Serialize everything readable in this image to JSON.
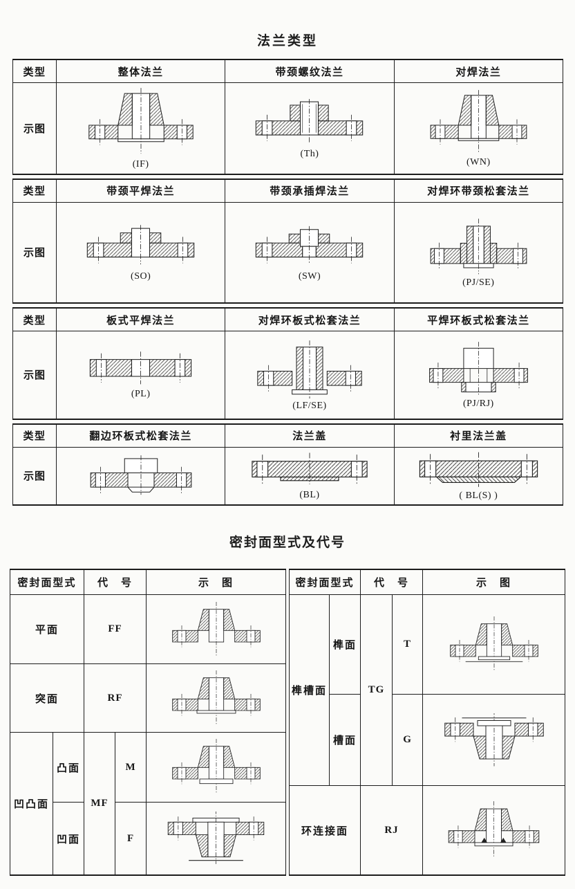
{
  "titles": {
    "flange_types": "法兰类型",
    "sealing_faces": "密封面型式及代号"
  },
  "colors": {
    "ink": "#1c1c1c",
    "paper": "#fbfbf9"
  },
  "flange_table": {
    "type_label": "类型",
    "diagram_label": "示图",
    "bands": [
      {
        "columns": [
          {
            "name": "整体法兰",
            "code": "(IF)",
            "diagram": "IF"
          },
          {
            "name": "带颈螺纹法兰",
            "code": "(Th)",
            "diagram": "TH"
          },
          {
            "name": "对焊法兰",
            "code": "(WN)",
            "diagram": "WN"
          }
        ]
      },
      {
        "columns": [
          {
            "name": "带颈平焊法兰",
            "code": "(SO)",
            "diagram": "SO"
          },
          {
            "name": "带颈承插焊法兰",
            "code": "(SW)",
            "diagram": "SW"
          },
          {
            "name": "对焊环带颈松套法兰",
            "code": "(PJ/SE)",
            "diagram": "PJSE"
          }
        ]
      },
      {
        "columns": [
          {
            "name": "板式平焊法兰",
            "code": "(PL)",
            "diagram": "PL"
          },
          {
            "name": "对焊环板式松套法兰",
            "code": "(LF/SE)",
            "diagram": "LFSE"
          },
          {
            "name": "平焊环板式松套法兰",
            "code": "(PJ/RJ)",
            "diagram": "PJRJ"
          }
        ]
      },
      {
        "columns": [
          {
            "name": "翻边环板式松套法兰",
            "code": "",
            "diagram": "FLARE"
          },
          {
            "name": "法兰盖",
            "code": "(BL)",
            "diagram": "BL"
          },
          {
            "name": "衬里法兰盖",
            "code": "( BL(S) )",
            "diagram": "BLS"
          }
        ]
      }
    ]
  },
  "sealing_table": {
    "headers": {
      "face_type": "密封面型式",
      "code": "代　号",
      "diagram": "示　图"
    },
    "left": {
      "flat": {
        "face": "平面",
        "code": "FF",
        "diagram": "FF"
      },
      "raised": {
        "face": "突面",
        "code": "RF",
        "diagram": "RF"
      },
      "mf_group": {
        "face": "凹凸面",
        "code": "MF"
      },
      "male": {
        "face": "凸面",
        "code": "M",
        "diagram": "M"
      },
      "female": {
        "face": "凹面",
        "code": "F",
        "diagram": "F"
      }
    },
    "right": {
      "tg_group": {
        "face": "榫槽面",
        "code": "TG"
      },
      "tongue": {
        "face": "榫面",
        "code": "T",
        "diagram": "T"
      },
      "groove": {
        "face": "槽面",
        "code": "G",
        "diagram": "G"
      },
      "ring": {
        "face": "环连接面",
        "code": "RJ",
        "diagram": "RJ"
      }
    }
  }
}
